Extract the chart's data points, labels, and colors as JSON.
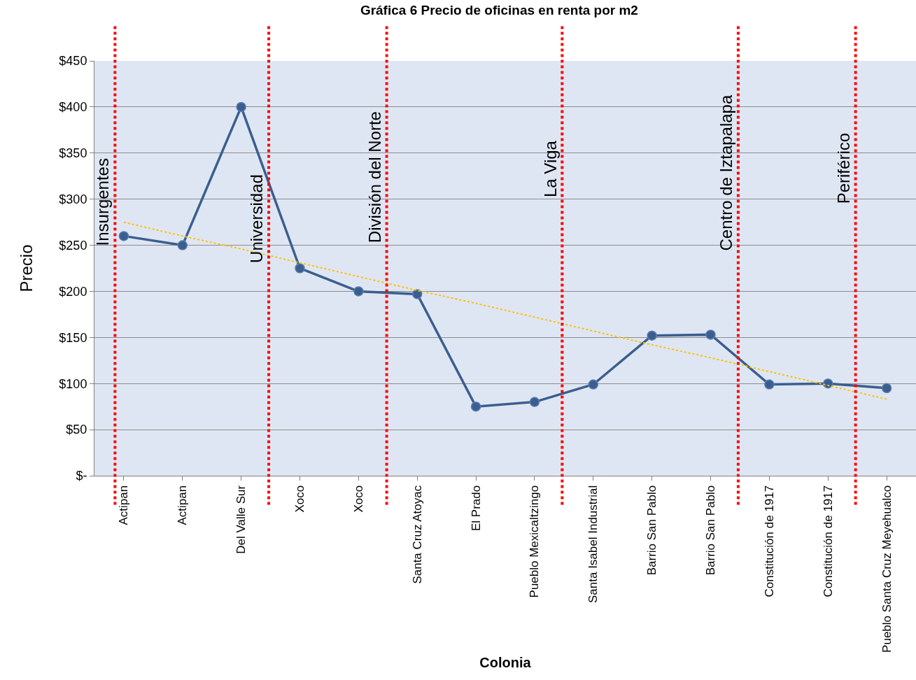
{
  "chart_data": {
    "type": "line",
    "title": "Gráfica 6 Precio de oficinas en renta por m2",
    "xlabel": "Colonia",
    "ylabel": "Precio",
    "categories": [
      "Actipan",
      "Actipan",
      "Del Valle Sur",
      "Xoco",
      "Xoco",
      "Santa Cruz Atoyac",
      "El Prado",
      "Pueblo Mexicaltzingo",
      "Santa Isabel Industrial",
      "Barrio San Pablo",
      "Barrio San Pablo",
      "Constitución de 1917",
      "Constitución de 1917",
      "Pueblo Santa Cruz Meyehualco"
    ],
    "series": [
      {
        "color": "#3a5f8f",
        "marker": "circle",
        "line_style": "solid",
        "values": [
          260,
          250,
          400,
          225,
          200,
          197,
          75,
          80,
          99,
          152,
          153,
          99,
          100,
          95
        ]
      },
      {
        "color": "#ffc000",
        "marker": "none",
        "line_style": "dotted",
        "values": [
          275,
          260,
          246,
          231,
          216,
          201,
          187,
          172,
          157,
          142,
          128,
          113,
          98,
          83
        ]
      }
    ],
    "ylim": [
      0,
      450
    ],
    "yticks": [
      {
        "value": 0,
        "label": "$-"
      },
      {
        "value": 50,
        "label": "$50"
      },
      {
        "value": 100,
        "label": "$100"
      },
      {
        "value": 150,
        "label": "$150"
      },
      {
        "value": 200,
        "label": "$200"
      },
      {
        "value": 250,
        "label": "$250"
      },
      {
        "value": 300,
        "label": "$300"
      },
      {
        "value": 350,
        "label": "$350"
      },
      {
        "value": 400,
        "label": "$400"
      },
      {
        "value": 450,
        "label": "$450"
      }
    ],
    "grid": "y",
    "annotations": [
      "Insurgentes",
      "Universidad",
      "División del Norte",
      "La Viga",
      "Centro de Iztapalapa",
      "Periférico"
    ]
  }
}
